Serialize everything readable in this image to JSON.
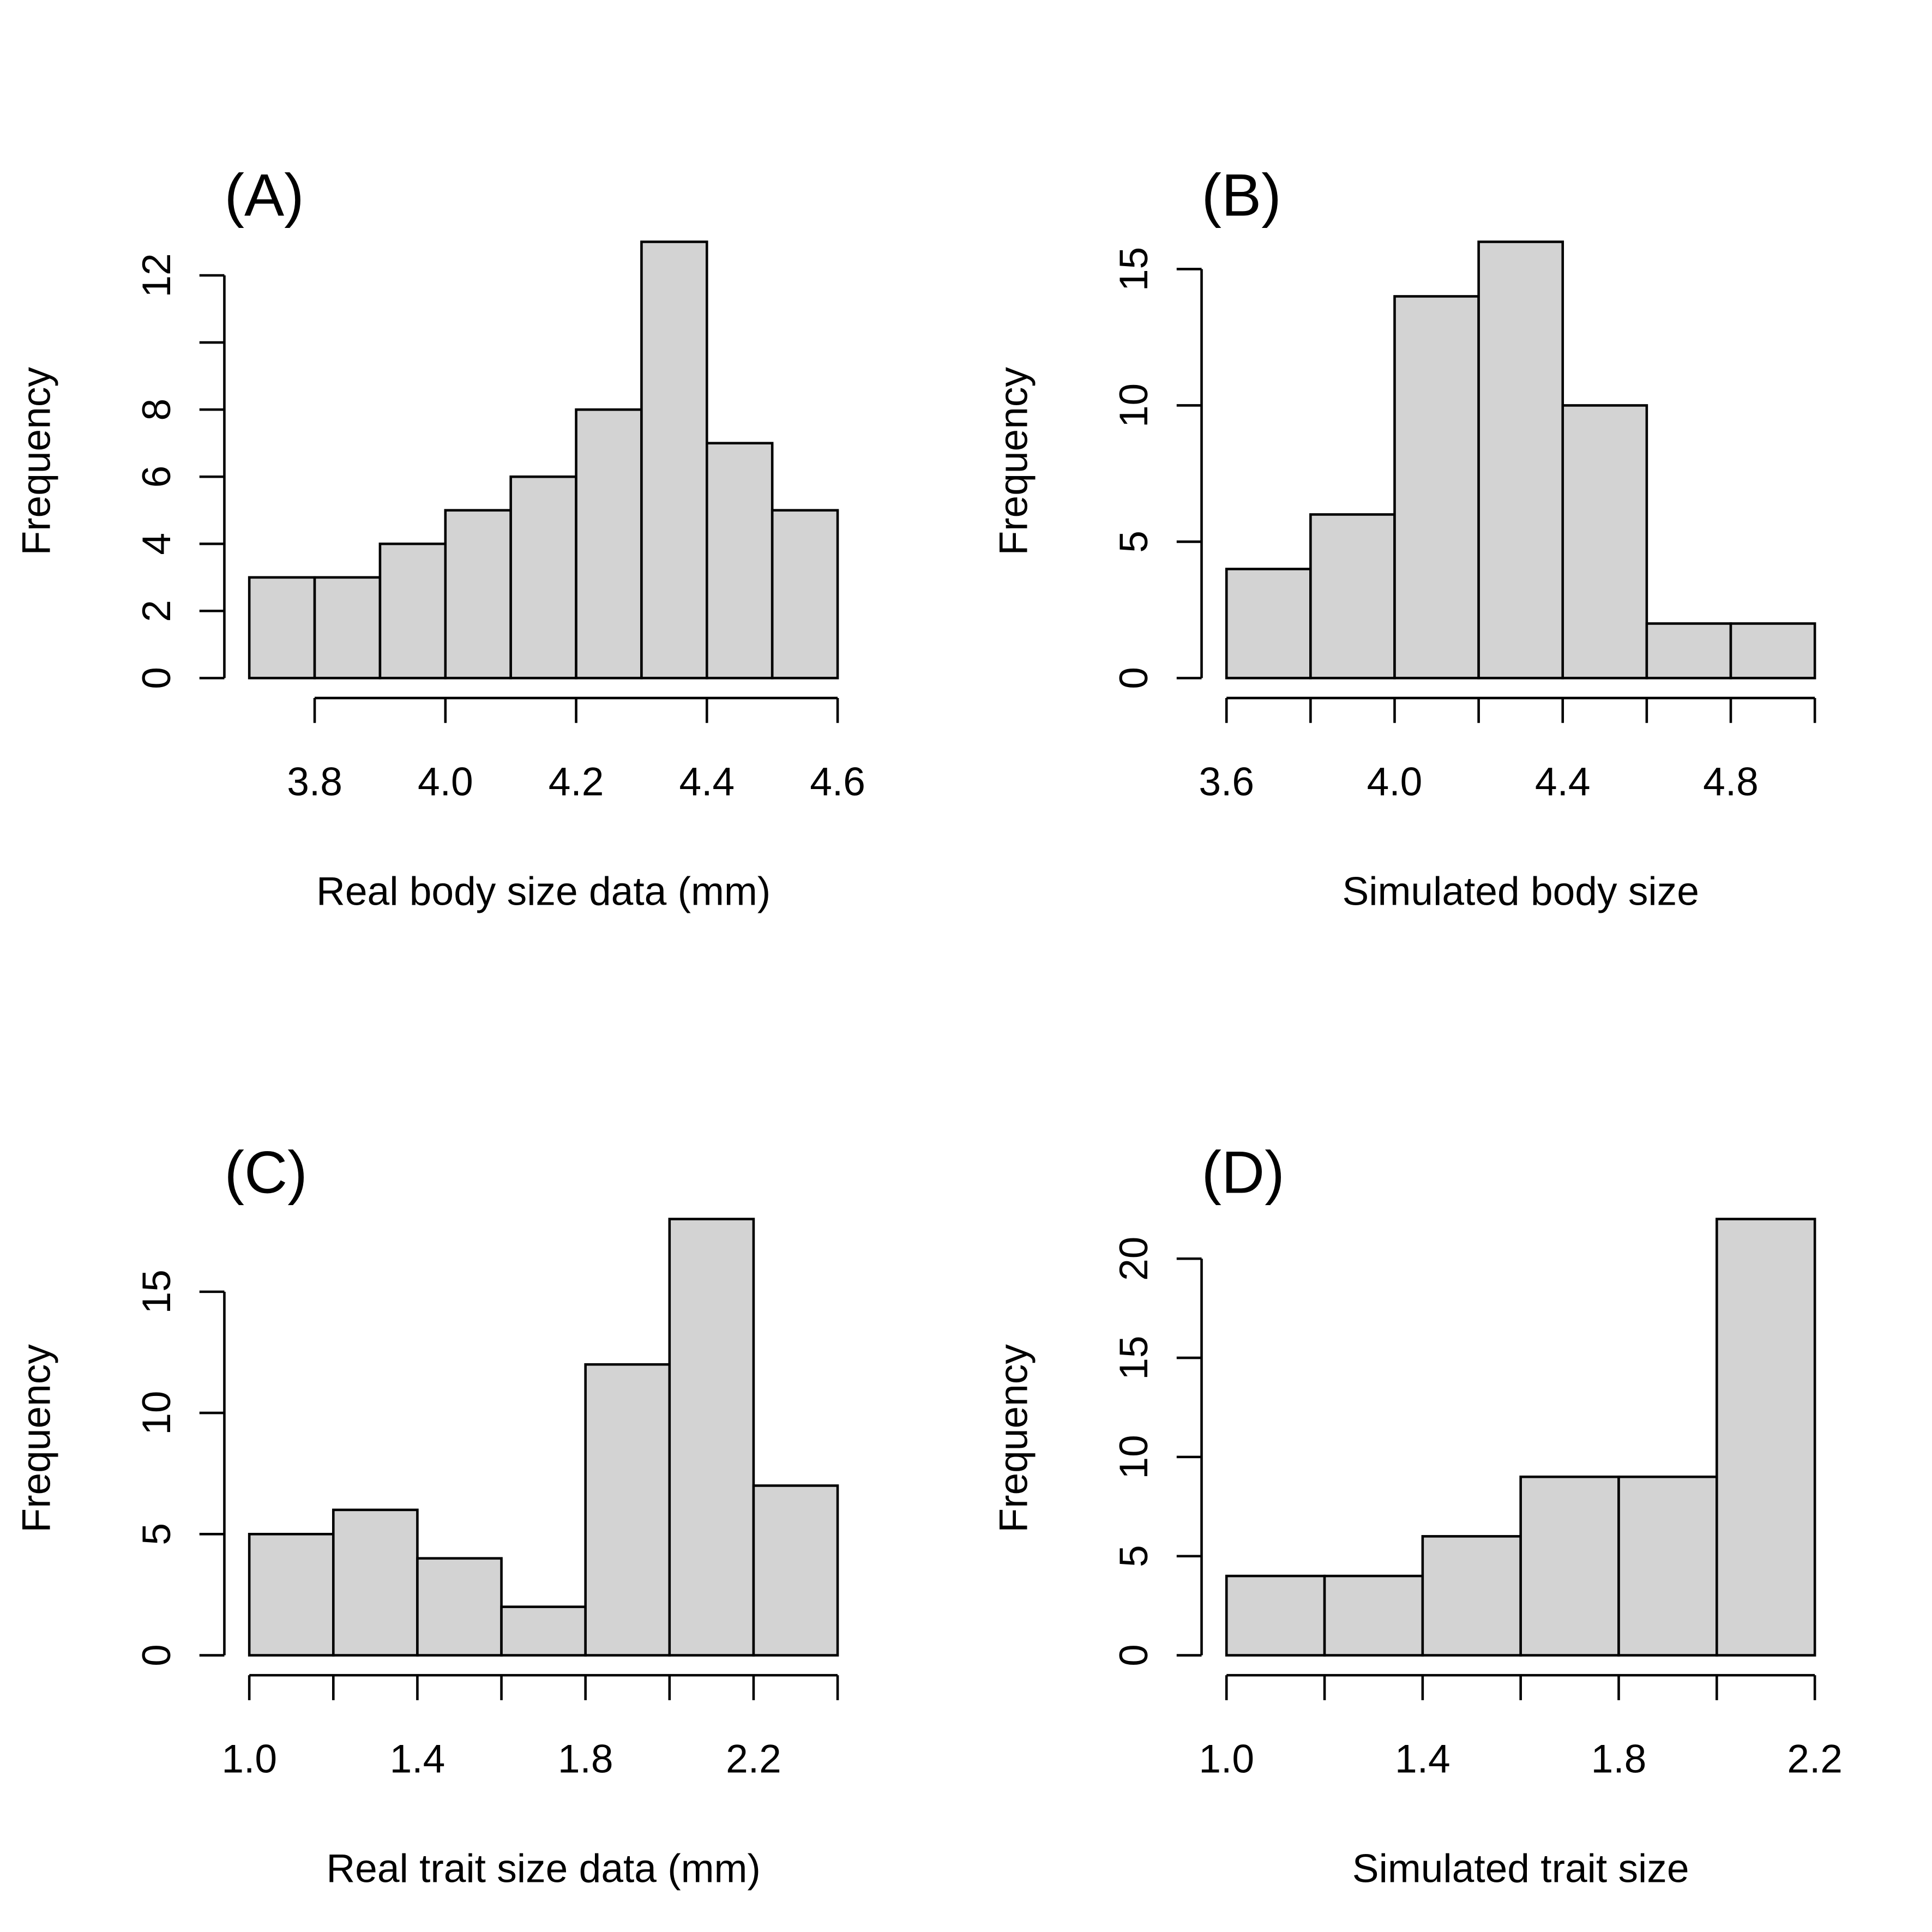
{
  "chart_data": [
    {
      "type": "histogram",
      "title": "(A)",
      "xlabel": "Real body size data (mm)",
      "ylabel": "Frequency",
      "bins": [
        3.7,
        3.8,
        3.9,
        4.0,
        4.1,
        4.2,
        4.3,
        4.4,
        4.5,
        4.6
      ],
      "values": [
        3,
        3,
        4,
        5,
        6,
        8,
        13,
        7,
        5
      ],
      "color": "#d3d3d3",
      "xlim": [
        3.7,
        4.6
      ],
      "ylim": [
        0,
        13
      ],
      "xticks": [
        3.8,
        {
          "value": 4.0,
          "label": "4.0"
        },
        4.2,
        4.4,
        4.6
      ],
      "yticks": [
        0,
        2,
        4,
        6,
        8,
        {
          "value": 10,
          "label": null
        },
        12
      ]
    },
    {
      "type": "histogram",
      "title": "(B)",
      "xlabel": "Simulated body size",
      "ylabel": "Frequency",
      "bins": [
        3.6,
        3.8,
        4.0,
        4.2,
        4.4,
        4.6,
        4.8,
        5.0
      ],
      "values": [
        4,
        6,
        14,
        16,
        10,
        2,
        2
      ],
      "color": "#d3d3d3",
      "xlim": [
        3.6,
        5.0
      ],
      "ylim": [
        0,
        16
      ],
      "xticks": [
        3.6,
        {
          "value": 3.8,
          "label": null
        },
        {
          "value": 4.0,
          "label": "4.0"
        },
        {
          "value": 4.2,
          "label": null
        },
        4.4,
        {
          "value": 4.6,
          "label": null
        },
        4.8,
        {
          "value": 5.0,
          "label": null
        }
      ],
      "yticks": [
        0,
        5,
        10,
        15
      ]
    },
    {
      "type": "histogram",
      "title": "(C)",
      "xlabel": "Real trait size data (mm)",
      "ylabel": "Frequency",
      "bins": [
        1.0,
        1.2,
        1.4,
        1.6,
        1.8,
        2.0,
        2.2,
        2.4
      ],
      "values": [
        5,
        6,
        4,
        2,
        12,
        18,
        7
      ],
      "color": "#d3d3d3",
      "xlim": [
        1.0,
        2.4
      ],
      "ylim": [
        0,
        18
      ],
      "xticks": [
        {
          "value": 1.0,
          "label": "1.0"
        },
        {
          "value": 1.2,
          "label": null
        },
        1.4,
        {
          "value": 1.6,
          "label": null
        },
        1.8,
        {
          "value": 2.0,
          "label": null
        },
        2.2,
        {
          "value": 2.4,
          "label": null
        }
      ],
      "yticks": [
        0,
        5,
        10,
        15
      ]
    },
    {
      "type": "histogram",
      "title": "(D)",
      "xlabel": "Simulated trait size",
      "ylabel": "Frequency",
      "bins": [
        1.0,
        1.2,
        1.4,
        1.6,
        1.8,
        2.0,
        2.2
      ],
      "values": [
        4,
        4,
        6,
        9,
        9,
        22
      ],
      "color": "#d3d3d3",
      "xlim": [
        1.0,
        2.2
      ],
      "ylim": [
        0,
        22
      ],
      "xticks": [
        {
          "value": 1.0,
          "label": "1.0"
        },
        {
          "value": 1.2,
          "label": null
        },
        1.4,
        {
          "value": 1.6,
          "label": null
        },
        1.8,
        {
          "value": 2.0,
          "label": null
        },
        2.2
      ],
      "yticks": [
        0,
        5,
        10,
        15,
        20
      ]
    }
  ]
}
